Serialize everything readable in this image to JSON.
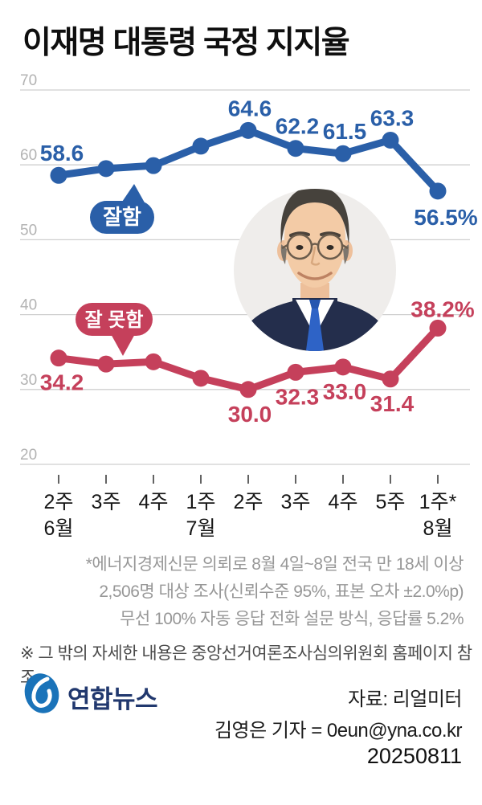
{
  "title": "이재명 대통령 국정 지지율",
  "chart_data": {
    "type": "line",
    "categories": [
      "2주",
      "3주",
      "4주",
      "1주",
      "2주",
      "3주",
      "4주",
      "5주",
      "1주*"
    ],
    "month_labels": {
      "0": "6월",
      "3": "7월",
      "8": "8월"
    },
    "y_ticks": [
      70,
      60,
      50,
      40,
      30,
      20
    ],
    "ylim": [
      20,
      70
    ],
    "grid": true,
    "series": [
      {
        "name": "잘함",
        "color": "#2a5fa8",
        "values": [
          58.6,
          59.5,
          59.9,
          62.5,
          64.6,
          62.2,
          61.5,
          63.3,
          56.5
        ],
        "point_labels": [
          "58.6",
          "",
          "",
          "",
          "64.6",
          "62.2",
          "61.5",
          "63.3",
          "56.5%"
        ]
      },
      {
        "name": "잘 못함",
        "color": "#c5405b",
        "values": [
          34.2,
          33.4,
          33.7,
          31.5,
          30.0,
          32.3,
          33.0,
          31.4,
          38.2
        ],
        "point_labels": [
          "34.2",
          "",
          "",
          "",
          "30.0",
          "32.3",
          "33.0",
          "31.4",
          "38.2%"
        ]
      }
    ],
    "annotations": [
      {
        "id": "approve-bubble",
        "text": "잘함"
      },
      {
        "id": "disapprove-bubble",
        "text": "잘 못함"
      }
    ],
    "legend_position": "bubbles-on-chart"
  },
  "footnotes": [
    "*에너지경제신문 의뢰로 8월 4일~8일 전국 만 18세 이상",
    "2,506명 대상 조사(신뢰수준 95%, 표본 오차 ±2.0%p)",
    "무선 100% 자동 응답 전화 설문 방식, 응답률 5.2%"
  ],
  "note": "※ 그 밖의 자세한 내용은 중앙선거여론조사심의위원회 홈페이지 참조",
  "footer": {
    "logo_text": "연합뉴스",
    "source": "자료: 리얼미터",
    "byline": "김영은 기자 = 0eun@yna.co.kr",
    "date": "20250811"
  },
  "colors": {
    "approve": "#2a5fa8",
    "disapprove": "#c5405b",
    "gridline": "#cfcfcf",
    "y_label": "#b3b3b3",
    "x_label": "#161616",
    "logo_blue": "#1a73b9",
    "logo_navy": "#21386e"
  }
}
